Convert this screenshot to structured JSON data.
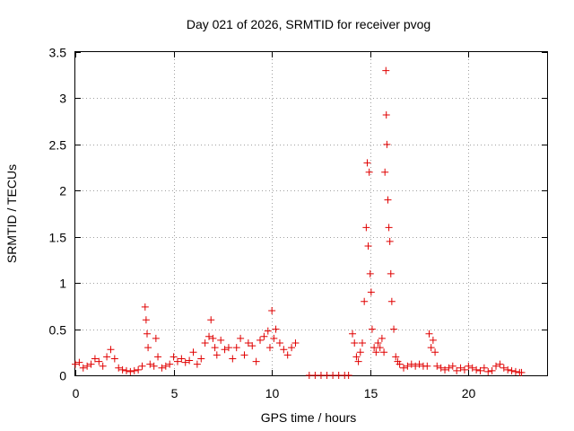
{
  "chart_data": {
    "type": "scatter",
    "title": "Day 021 of 2026, SRMTID for receiver pvog",
    "xlabel": "GPS time / hours",
    "ylabel": "SRMTID / TECUs",
    "xlim": [
      0,
      24
    ],
    "ylim": [
      0,
      3.5
    ],
    "xticks": [
      0,
      5,
      10,
      15,
      20
    ],
    "xtick_labels": [
      "0",
      "5",
      "10",
      "15",
      "20"
    ],
    "yticks": [
      0,
      0.5,
      1,
      1.5,
      2,
      2.5,
      3,
      3.5
    ],
    "ytick_labels": [
      "0",
      "0.5",
      "1",
      "1.5",
      "2",
      "2.5",
      "3",
      "3.5"
    ],
    "grid": true,
    "marker": "+",
    "series_color": "#e00000",
    "series": [
      {
        "name": "SRMTID",
        "x": [
          0.0,
          0.2,
          0.4,
          0.6,
          0.8,
          1.0,
          1.2,
          1.4,
          1.6,
          1.8,
          2.0,
          2.2,
          2.4,
          2.6,
          2.8,
          3.0,
          3.2,
          3.4,
          3.55,
          3.6,
          3.65,
          3.7,
          3.8,
          4.0,
          4.1,
          4.2,
          4.4,
          4.6,
          4.8,
          5.0,
          5.2,
          5.4,
          5.6,
          5.8,
          6.0,
          6.2,
          6.4,
          6.6,
          6.8,
          6.9,
          7.0,
          7.1,
          7.2,
          7.4,
          7.6,
          7.8,
          8.0,
          8.2,
          8.4,
          8.6,
          8.8,
          9.0,
          9.2,
          9.4,
          9.6,
          9.8,
          9.9,
          10.0,
          10.1,
          10.2,
          10.4,
          10.6,
          10.8,
          11.0,
          11.2,
          11.9,
          12.2,
          12.5,
          12.8,
          13.1,
          13.4,
          13.7,
          13.9,
          14.1,
          14.2,
          14.3,
          14.4,
          14.5,
          14.6,
          14.7,
          14.8,
          14.85,
          14.9,
          14.95,
          15.0,
          15.05,
          15.1,
          15.2,
          15.3,
          15.4,
          15.5,
          15.6,
          15.7,
          15.75,
          15.8,
          15.82,
          15.85,
          15.9,
          15.95,
          16.0,
          16.05,
          16.1,
          16.2,
          16.3,
          16.4,
          16.5,
          16.7,
          16.9,
          17.1,
          17.3,
          17.5,
          17.7,
          17.9,
          18.0,
          18.1,
          18.2,
          18.3,
          18.4,
          18.6,
          18.8,
          19.0,
          19.2,
          19.4,
          19.6,
          19.8,
          20.0,
          20.2,
          20.4,
          20.6,
          20.8,
          21.0,
          21.2,
          21.4,
          21.6,
          21.8,
          22.0,
          22.2,
          22.4,
          22.6,
          22.7
        ],
        "y": [
          0.12,
          0.14,
          0.08,
          0.1,
          0.12,
          0.18,
          0.15,
          0.1,
          0.2,
          0.28,
          0.18,
          0.08,
          0.06,
          0.05,
          0.04,
          0.05,
          0.06,
          0.1,
          0.74,
          0.6,
          0.45,
          0.3,
          0.12,
          0.1,
          0.4,
          0.2,
          0.08,
          0.1,
          0.12,
          0.2,
          0.15,
          0.18,
          0.14,
          0.16,
          0.25,
          0.12,
          0.18,
          0.35,
          0.42,
          0.6,
          0.4,
          0.3,
          0.22,
          0.38,
          0.28,
          0.3,
          0.18,
          0.3,
          0.4,
          0.22,
          0.35,
          0.32,
          0.15,
          0.38,
          0.42,
          0.48,
          0.3,
          0.7,
          0.4,
          0.5,
          0.35,
          0.28,
          0.22,
          0.3,
          0.35,
          0.0,
          0.0,
          0.0,
          0.0,
          0.0,
          0.0,
          0.0,
          0.0,
          0.45,
          0.35,
          0.2,
          0.15,
          0.25,
          0.35,
          0.8,
          1.6,
          2.3,
          1.4,
          2.2,
          1.1,
          0.9,
          0.5,
          0.3,
          0.25,
          0.35,
          0.3,
          0.4,
          0.25,
          2.2,
          3.3,
          2.82,
          2.5,
          1.9,
          1.6,
          1.45,
          1.1,
          0.8,
          0.5,
          0.2,
          0.15,
          0.12,
          0.08,
          0.1,
          0.12,
          0.1,
          0.12,
          0.1,
          0.1,
          0.45,
          0.3,
          0.38,
          0.25,
          0.1,
          0.08,
          0.06,
          0.08,
          0.1,
          0.05,
          0.08,
          0.06,
          0.1,
          0.08,
          0.06,
          0.05,
          0.08,
          0.04,
          0.05,
          0.1,
          0.12,
          0.08,
          0.06,
          0.05,
          0.04,
          0.03,
          0.03
        ]
      }
    ]
  }
}
